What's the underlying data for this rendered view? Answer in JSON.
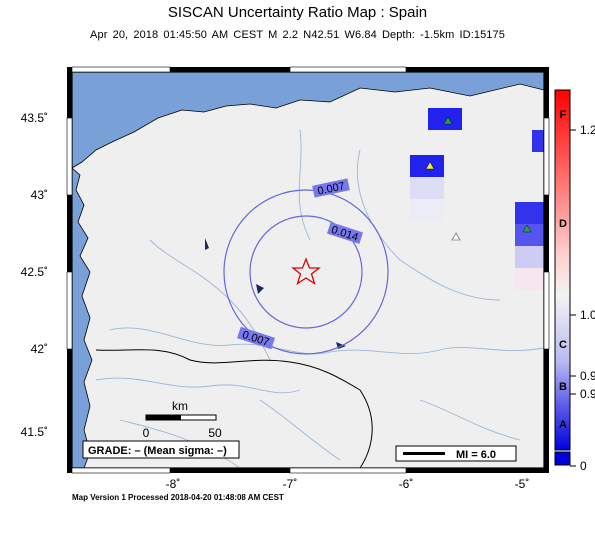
{
  "map": {
    "title": "SISCAN Uncertainty Ratio Map : Spain",
    "subtitle": "Apr 20, 2018 01:45:50 AM CEST   M 2.2   N42.51 W6.84   Depth: -1.5km   ID:15175",
    "footer": "Map Version 1 Processed 2018-04-20 01:48:08 AM CEST",
    "lat_ticks": [
      "43.5˚",
      "43˚",
      "42.5˚",
      "42˚",
      "41.5˚"
    ],
    "lon_ticks": [
      "-8˚",
      "-7˚",
      "-6˚",
      "-5˚"
    ],
    "contours": [
      "0.007",
      "0.014",
      "0.007"
    ],
    "scale_bar": {
      "label": "km",
      "min": "0",
      "max": "50"
    },
    "grade_box": "GRADE: – (Mean sigma: –)",
    "mi_legend": "MI = 6.0",
    "epicenter_symbol": "star-icon",
    "station_symbol": "triangle-icon"
  },
  "colorbar": {
    "letters": [
      "F",
      "D",
      "C",
      "B",
      "A"
    ],
    "values": [
      "1.2",
      "1.0",
      "0.9",
      "0.9",
      "0"
    ],
    "colors": {
      "high": "#ff0000",
      "mid": "#f2f2f2",
      "low": "#0000dd"
    }
  }
}
